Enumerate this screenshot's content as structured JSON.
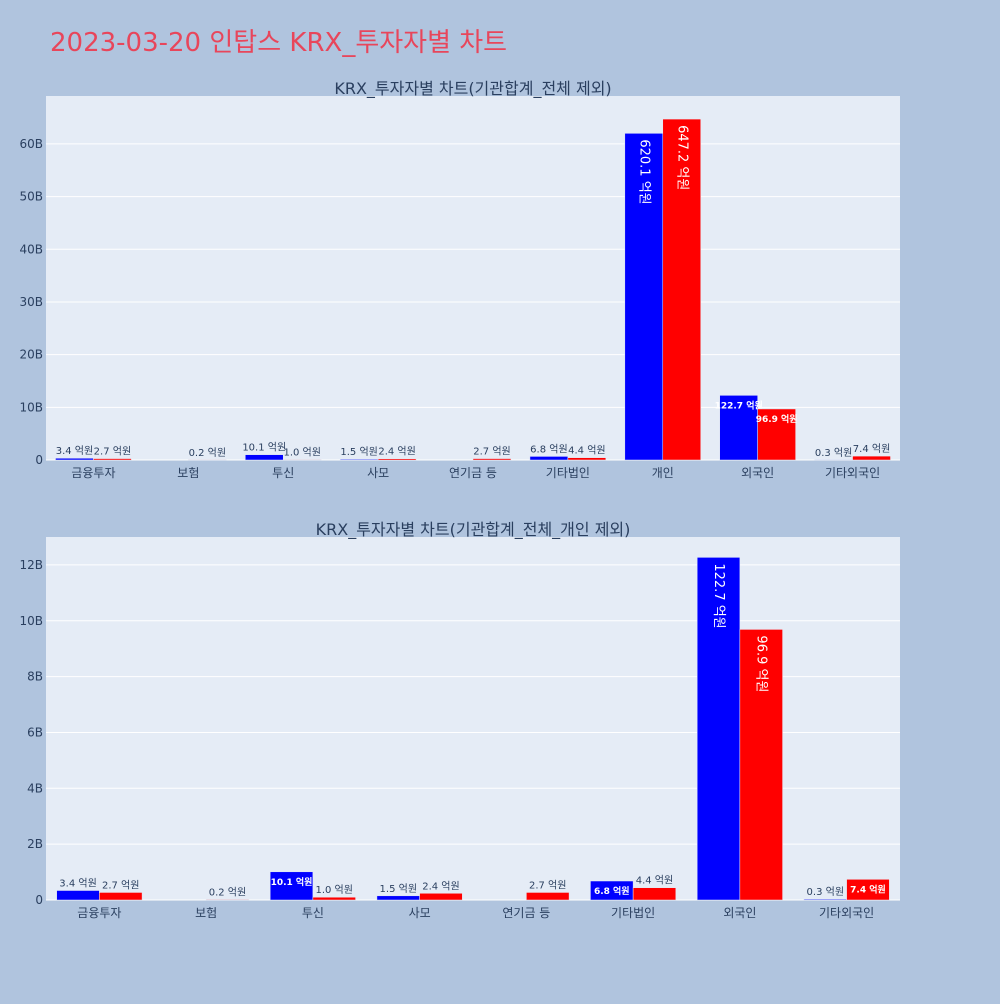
{
  "page_title": "2023-03-20 인탑스 KRX_투자자별 차트",
  "colors": {
    "page_bg": "#b0c4de",
    "plot_bg": "#e5ecf6",
    "grid": "#ffffff",
    "buy": "#0000ff",
    "sell": "#ff0000",
    "title": "#e8465b",
    "text": "#2a3f5f"
  },
  "chart_data": [
    {
      "type": "bar",
      "title": "KRX_투자자별 차트(기관합계_전체 제외)",
      "categories": [
        "금융투자",
        "보험",
        "투신",
        "사모",
        "연기금 등",
        "기타법인",
        "개인",
        "외국인",
        "기타외국인"
      ],
      "series": [
        {
          "color": "#0000ff",
          "values": [
            0.34,
            0,
            1.01,
            0.15,
            0,
            0.68,
            62.01,
            12.27,
            0.03
          ],
          "labels": [
            "3.4 억원",
            "",
            "10.1 억원",
            "1.5 억원",
            "",
            "6.8 억원",
            "620.1 억원",
            "122.7 억원",
            "0.3 억원"
          ]
        },
        {
          "color": "#ff0000",
          "values": [
            0.27,
            0.02,
            0.1,
            0.24,
            0.27,
            0.44,
            64.72,
            9.69,
            0.74
          ],
          "labels": [
            "2.7 억원",
            "0.2 억원",
            "1.0 억원",
            "2.4 억원",
            "2.7 억원",
            "4.4 억원",
            "647.2 억원",
            "96.9 억원",
            "7.4 억원"
          ]
        }
      ],
      "ylim": [
        0,
        69.1
      ],
      "yticks": [
        0,
        10,
        20,
        30,
        40,
        50,
        60
      ],
      "ytick_labels": [
        "0",
        "10B",
        "20B",
        "30B",
        "40B",
        "50B",
        "60B"
      ],
      "grid": true
    },
    {
      "type": "bar",
      "title": "KRX_투자자별 차트(기관합계_전체_개인 제외)",
      "categories": [
        "금융투자",
        "보험",
        "투신",
        "사모",
        "연기금 등",
        "기타법인",
        "외국인",
        "기타외국인"
      ],
      "series": [
        {
          "color": "#0000ff",
          "values": [
            0.34,
            0,
            1.01,
            0.15,
            0,
            0.68,
            12.27,
            0.03
          ],
          "labels": [
            "3.4 억원",
            "",
            "10.1 억원",
            "1.5 억원",
            "",
            "6.8 억원",
            "122.7 억원",
            "0.3 억원"
          ]
        },
        {
          "color": "#ff0000",
          "values": [
            0.27,
            0.02,
            0.1,
            0.24,
            0.27,
            0.44,
            9.69,
            0.74
          ],
          "labels": [
            "2.7 억원",
            "0.2 억원",
            "1.0 억원",
            "2.4 억원",
            "2.7 억원",
            "4.4 억원",
            "96.9 억원",
            "7.4 억원"
          ]
        }
      ],
      "ylim": [
        0,
        13.0
      ],
      "yticks": [
        0,
        2,
        4,
        6,
        8,
        10,
        12
      ],
      "ytick_labels": [
        "0",
        "2B",
        "4B",
        "6B",
        "8B",
        "10B",
        "12B"
      ],
      "grid": true
    }
  ]
}
